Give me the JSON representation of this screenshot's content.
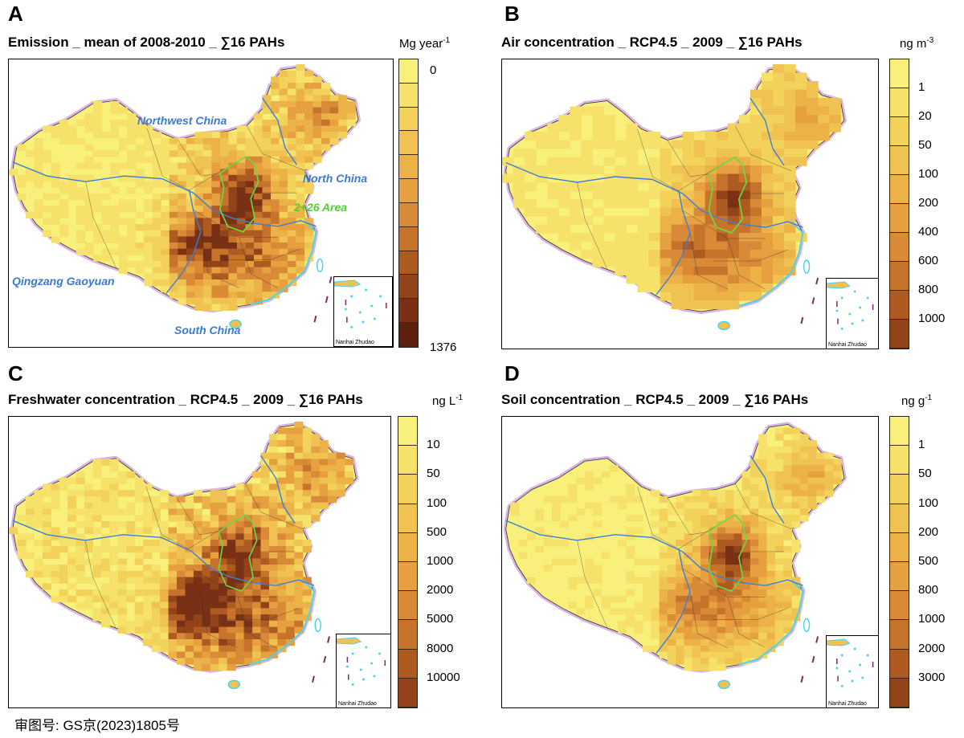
{
  "panels": [
    {
      "letter": "A",
      "title": "Emission _ mean of 2008-2010 _ ∑16 PAHs",
      "unit_base": "Mg year",
      "unit_sup": "-1",
      "legend_labels": [
        "0",
        "1376"
      ],
      "region_labels": {
        "northwest": "Northwest China",
        "north": "North China",
        "area": "2+26 Area",
        "qingzang": "Qingzang Gaoyuan",
        "south": "South China"
      },
      "inset_label": "Nanhai Zhudao"
    },
    {
      "letter": "B",
      "title": "Air concentration _ RCP4.5 _ 2009 _ ∑16 PAHs",
      "unit_base": "ng m",
      "unit_sup": "-3",
      "legend_labels": [
        "1",
        "20",
        "50",
        "100",
        "200",
        "400",
        "600",
        "800",
        "1000"
      ],
      "inset_label": "Nanhai Zhudao"
    },
    {
      "letter": "C",
      "title": "Freshwater concentration _ RCP4.5 _ 2009 _ ∑16 PAHs",
      "unit_base": "ng L",
      "unit_sup": "-1",
      "legend_labels": [
        "10",
        "50",
        "100",
        "500",
        "1000",
        "2000",
        "5000",
        "8000",
        "10000"
      ],
      "inset_label": "Nanhai Zhudao"
    },
    {
      "letter": "D",
      "title": "Soil concentration _ RCP4.5 _ 2009 _ ∑16 PAHs",
      "unit_base": "ng g",
      "unit_sup": "-1",
      "legend_labels": [
        "1",
        "50",
        "100",
        "200",
        "500",
        "800",
        "1000",
        "2000",
        "3000"
      ],
      "inset_label": "Nanhai Zhudao"
    }
  ],
  "colors": {
    "scale": [
      "#f8f07a",
      "#f6e26a",
      "#f3d25c",
      "#efc251",
      "#ecb248",
      "#e6a040",
      "#d98a36",
      "#c6732c",
      "#ae5b22",
      "#93431a",
      "#7a3014",
      "#5e1f0e"
    ],
    "boundary": "#3d7fd8",
    "area_outline": "#66dd44",
    "coast": "#4fd2ee",
    "border_halo": "#d9b3e6"
  },
  "footer": "审图号: GS京(2023)1805号"
}
